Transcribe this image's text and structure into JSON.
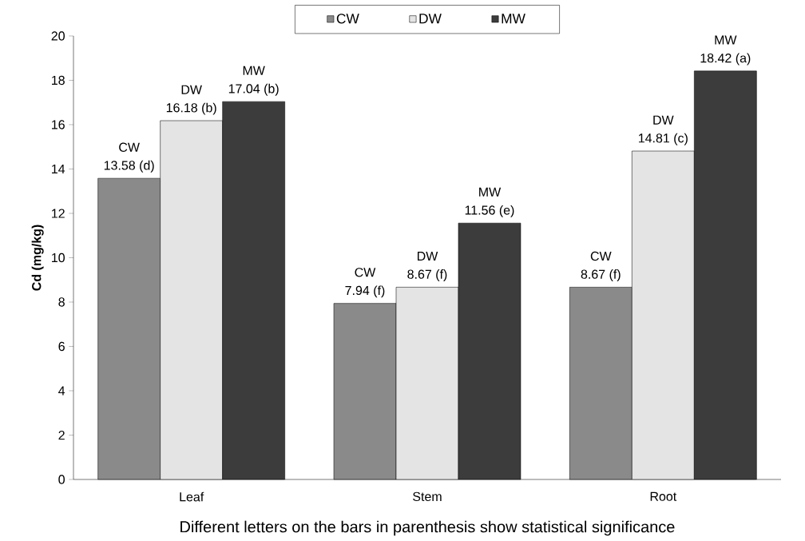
{
  "chart_data": {
    "type": "bar",
    "xlabel": "Different letters on the bars in parenthesis show statistical significance",
    "ylabel": "Cd (mg/kg)",
    "categories": [
      "Leaf",
      "Stem",
      "Root"
    ],
    "series": [
      {
        "name": "CW",
        "color": "#8a8a8a",
        "values": [
          13.58,
          7.94,
          8.67
        ],
        "value_labels": [
          "13.58 (d)",
          "7.94 (f)",
          "8.67 (f)"
        ]
      },
      {
        "name": "DW",
        "color": "#e4e4e4",
        "values": [
          16.18,
          8.67,
          14.81
        ],
        "value_labels": [
          "16.18 (b)",
          "8.67 (f)",
          "14.81 (c)"
        ]
      },
      {
        "name": "MW",
        "color": "#3c3c3c",
        "values": [
          17.04,
          11.56,
          18.42
        ],
        "value_labels": [
          "17.04 (b)",
          "11.56 (e)",
          "18.42 (a)"
        ]
      }
    ],
    "ylim": [
      0,
      20
    ],
    "yticks": [
      0,
      2,
      4,
      6,
      8,
      10,
      12,
      14,
      16,
      18,
      20
    ],
    "legend": "top"
  }
}
